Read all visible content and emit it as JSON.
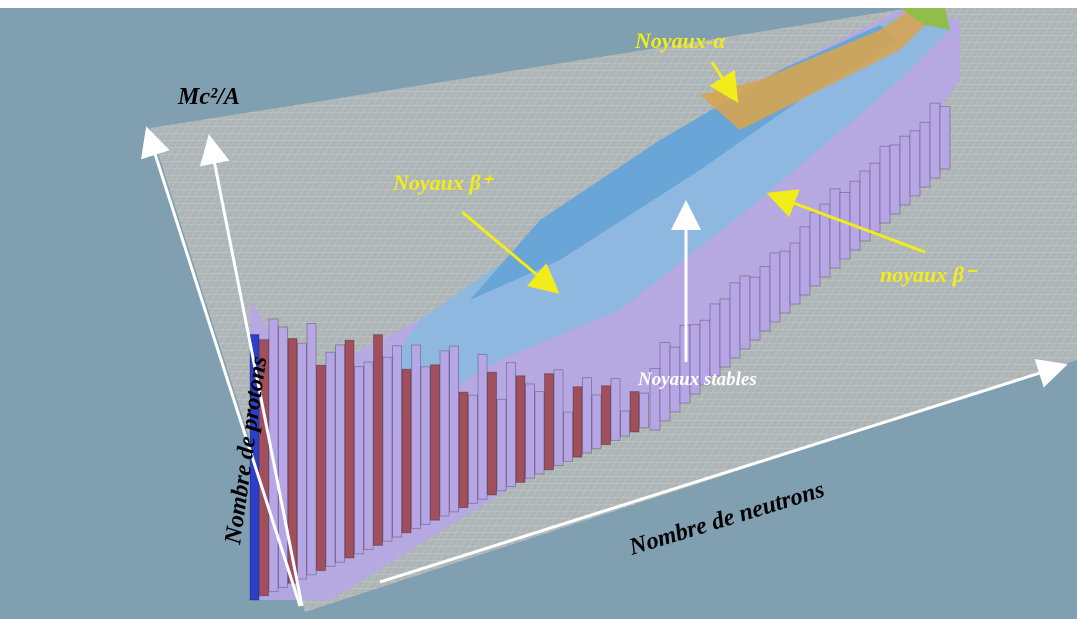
{
  "axes": {
    "vertical": "Mc²/A",
    "protons": "Nombre de protons",
    "neutrons": "Nombre de neutrons"
  },
  "labels": {
    "alpha": "Noyaux-α",
    "beta_plus": "Noyaux β⁺",
    "beta_minus": "noyaux β⁻",
    "stable": "Noyaux stables"
  }
}
